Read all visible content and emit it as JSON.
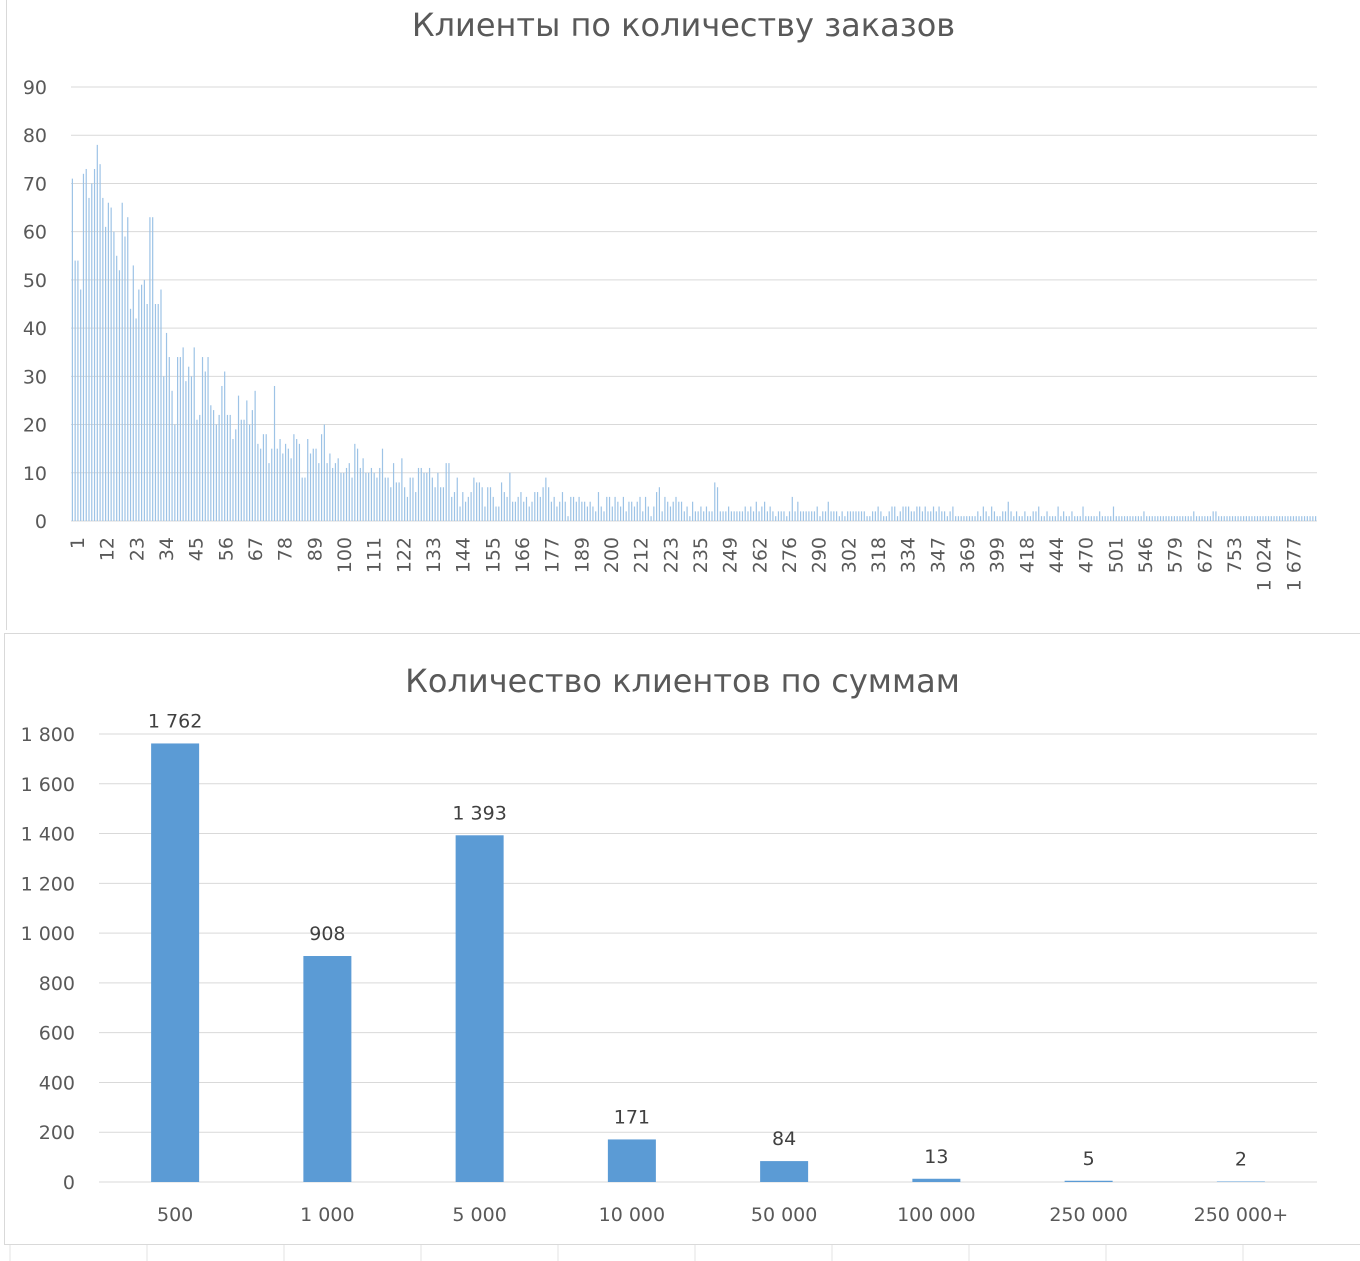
{
  "chart_data": [
    {
      "type": "bar",
      "title": "Клиенты по количеству заказов",
      "ylim": [
        0,
        90
      ],
      "yticks": [
        0,
        10,
        20,
        30,
        40,
        50,
        60,
        70,
        80,
        90
      ],
      "grid": true,
      "legend": "none",
      "x_tick_labels": [
        "1",
        "12",
        "23",
        "34",
        "45",
        "56",
        "67",
        "78",
        "89",
        "100",
        "111",
        "122",
        "133",
        "144",
        "155",
        "166",
        "177",
        "189",
        "200",
        "212",
        "223",
        "235",
        "249",
        "262",
        "276",
        "290",
        "302",
        "318",
        "334",
        "347",
        "369",
        "399",
        "418",
        "444",
        "470",
        "501",
        "546",
        "579",
        "672",
        "753",
        "1 024",
        "1 677"
      ],
      "values": [
        71,
        54,
        54,
        48,
        72,
        73,
        67,
        70,
        73,
        78,
        74,
        67,
        61,
        66,
        65,
        60,
        55,
        52,
        66,
        59,
        63,
        44,
        53,
        42,
        48,
        49,
        50,
        45,
        63,
        63,
        45,
        45,
        48,
        30,
        39,
        34,
        27,
        20,
        34,
        34,
        36,
        29,
        32,
        30,
        36,
        21,
        22,
        34,
        31,
        34,
        24,
        23,
        20,
        22,
        28,
        31,
        22,
        22,
        17,
        19,
        26,
        21,
        21,
        25,
        20,
        23,
        27,
        16,
        15,
        18,
        18,
        12,
        15,
        28,
        15,
        17,
        14,
        16,
        15,
        13,
        18,
        17,
        16,
        9,
        9,
        17,
        14,
        15,
        15,
        12,
        18,
        20,
        12,
        14,
        11,
        12,
        13,
        10,
        10,
        11,
        12,
        9,
        16,
        15,
        11,
        13,
        10,
        10,
        11,
        10,
        9,
        11,
        15,
        9,
        9,
        7,
        12,
        8,
        8,
        13,
        7,
        5,
        9,
        9,
        6,
        11,
        11,
        10,
        10,
        11,
        9,
        7,
        10,
        7,
        7,
        12,
        12,
        5,
        6,
        9,
        3,
        6,
        4,
        5,
        6,
        9,
        8,
        8,
        7,
        3,
        7,
        7,
        5,
        3,
        3,
        8,
        6,
        5,
        10,
        4,
        4,
        5,
        6,
        4,
        5,
        3,
        4,
        6,
        6,
        5,
        7,
        9,
        7,
        4,
        5,
        3,
        4,
        6,
        4,
        1,
        5,
        5,
        4,
        5,
        4,
        4,
        3,
        4,
        3,
        2,
        6,
        3,
        2,
        5,
        5,
        3,
        5,
        4,
        3,
        5,
        2,
        4,
        4,
        3,
        4,
        5,
        2,
        5,
        3,
        1,
        3,
        6,
        7,
        2,
        5,
        4,
        3,
        4,
        5,
        4,
        4,
        2,
        3,
        1,
        4,
        2,
        2,
        3,
        2,
        3,
        2,
        2,
        8,
        7,
        2,
        2,
        2,
        3,
        2,
        2,
        2,
        2,
        2,
        3,
        2,
        3,
        2,
        4,
        2,
        3,
        4,
        2,
        3,
        2,
        1,
        2,
        2,
        2,
        1,
        2,
        5,
        2,
        4,
        2,
        2,
        2,
        2,
        2,
        2,
        3,
        1,
        2,
        2,
        4,
        2,
        2,
        2,
        1,
        2,
        1,
        2,
        2,
        2,
        2,
        2,
        2,
        2,
        1,
        1,
        2,
        2,
        3,
        2,
        1,
        1,
        2,
        3,
        3,
        1,
        2,
        3,
        3,
        3,
        2,
        2,
        3,
        3,
        2,
        3,
        2,
        2,
        3,
        2,
        3,
        2,
        2,
        1,
        2,
        3,
        1,
        1,
        1,
        1,
        1,
        1,
        1,
        1,
        2,
        1,
        3,
        2,
        1,
        3,
        2,
        1,
        1,
        2,
        2,
        4,
        2,
        1,
        2,
        1,
        1,
        2,
        1,
        1,
        2,
        2,
        3,
        1,
        1,
        2,
        1,
        1,
        1,
        3,
        1,
        2,
        1,
        1,
        2,
        1,
        1,
        1,
        3,
        1,
        1,
        1,
        1,
        1,
        2,
        1,
        1,
        1,
        1,
        3,
        1,
        1,
        1,
        1,
        1,
        1,
        1,
        1,
        1,
        1,
        2,
        1,
        1,
        1,
        1,
        1,
        1,
        1,
        1,
        1,
        1,
        1,
        1,
        1,
        1,
        1,
        1,
        1,
        2,
        1,
        1,
        1,
        1,
        1,
        1,
        2,
        2,
        1,
        1,
        1,
        1,
        1,
        1,
        1,
        1,
        1,
        1,
        1,
        1,
        1,
        1,
        1,
        1,
        1,
        1,
        1,
        1,
        1,
        1,
        1,
        1,
        1,
        1,
        1,
        1,
        1,
        1,
        1,
        1,
        1,
        1,
        1,
        1
      ],
      "color": "#9dc3e6"
    },
    {
      "type": "bar",
      "title": "Количество клиентов по суммам",
      "categories": [
        "500",
        "1 000",
        "5 000",
        "10 000",
        "50 000",
        "100 000",
        "250 000",
        "250 000+"
      ],
      "values": [
        1762,
        908,
        1393,
        171,
        84,
        13,
        5,
        2
      ],
      "data_labels": [
        "1 762",
        "908",
        "1 393",
        "171",
        "84",
        "13",
        "5",
        "2"
      ],
      "ylim": [
        0,
        1800
      ],
      "yticks": [
        0,
        200,
        400,
        600,
        800,
        1000,
        1200,
        1400,
        1600,
        1800
      ],
      "ytick_labels": [
        "0",
        "200",
        "400",
        "600",
        "800",
        "1 000",
        "1 200",
        "1 400",
        "1 600",
        "1 800"
      ],
      "grid": true,
      "legend": "none",
      "color": "#5b9bd5"
    }
  ]
}
